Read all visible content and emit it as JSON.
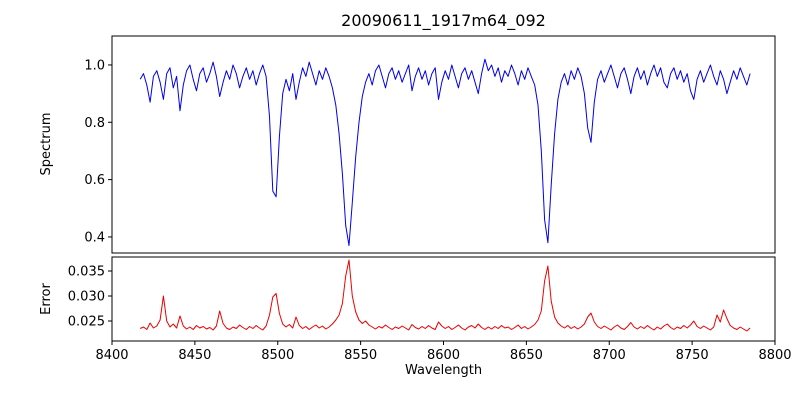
{
  "figure": {
    "title": "20090611_1917m64_092"
  },
  "chart_data": [
    {
      "type": "line",
      "panel": "spectrum",
      "title": "20090611_1917m64_092",
      "ylabel": "Spectrum",
      "line_color": "#0000ee",
      "xlim": [
        8400,
        8800
      ],
      "ylim": [
        0.344,
        1.101
      ],
      "yticks": [
        0.4,
        0.6,
        0.8,
        1.0
      ],
      "yticklabels": [
        "0.4",
        "0.6",
        "0.8",
        "1.0"
      ],
      "grid": false,
      "x_start": 8417,
      "x_step": 2,
      "y": [
        0.95,
        0.97,
        0.93,
        0.87,
        0.96,
        0.98,
        0.94,
        0.88,
        0.97,
        0.99,
        0.92,
        0.96,
        0.84,
        0.93,
        0.98,
        1.0,
        0.95,
        0.91,
        0.97,
        0.99,
        0.94,
        0.97,
        1.01,
        0.96,
        0.89,
        0.94,
        0.98,
        0.95,
        1.0,
        0.97,
        0.92,
        0.96,
        0.99,
        0.95,
        0.98,
        0.93,
        0.97,
        1.0,
        0.96,
        0.82,
        0.56,
        0.54,
        0.75,
        0.9,
        0.95,
        0.91,
        0.97,
        0.88,
        0.94,
        0.99,
        0.96,
        1.01,
        0.97,
        0.93,
        0.98,
        0.95,
        0.99,
        0.96,
        0.92,
        0.86,
        0.76,
        0.62,
        0.44,
        0.37,
        0.52,
        0.68,
        0.8,
        0.89,
        0.94,
        0.97,
        0.93,
        0.98,
        1.0,
        0.96,
        0.92,
        0.97,
        0.99,
        0.95,
        0.98,
        0.94,
        0.97,
        1.0,
        0.91,
        0.96,
        0.99,
        0.95,
        0.98,
        0.93,
        0.97,
        0.99,
        0.88,
        0.94,
        0.98,
        0.95,
        1.0,
        0.96,
        0.92,
        0.97,
        0.99,
        0.95,
        0.98,
        0.94,
        0.9,
        0.97,
        1.02,
        0.98,
        1.0,
        0.96,
        0.99,
        0.94,
        0.98,
        0.96,
        1.0,
        0.97,
        0.93,
        0.98,
        0.95,
        0.99,
        0.96,
        0.93,
        0.86,
        0.7,
        0.46,
        0.38,
        0.58,
        0.76,
        0.88,
        0.94,
        0.97,
        0.93,
        0.98,
        0.95,
        0.99,
        0.96,
        0.9,
        0.78,
        0.73,
        0.87,
        0.95,
        0.98,
        0.94,
        0.97,
        1.0,
        0.96,
        0.92,
        0.97,
        0.99,
        0.95,
        0.9,
        0.96,
        0.99,
        0.95,
        0.98,
        0.93,
        0.97,
        1.0,
        0.96,
        0.99,
        0.94,
        0.92,
        0.97,
        0.99,
        0.95,
        0.98,
        0.94,
        0.97,
        0.91,
        0.88,
        0.95,
        0.98,
        0.94,
        0.97,
        1.0,
        0.96,
        0.93,
        0.98,
        0.95,
        0.9,
        0.94,
        0.98,
        0.95,
        0.99,
        0.96,
        0.93,
        0.97
      ]
    },
    {
      "type": "line",
      "panel": "error",
      "ylabel": "Error",
      "xlabel": "Wavelength",
      "line_color": "#ee0000",
      "xlim": [
        8400,
        8800
      ],
      "ylim": [
        0.021,
        0.0378
      ],
      "yticks": [
        0.025,
        0.03,
        0.035
      ],
      "yticklabels": [
        "0.025",
        "0.030",
        "0.035"
      ],
      "xticks": [
        8400,
        8450,
        8500,
        8550,
        8600,
        8650,
        8700,
        8750,
        8800
      ],
      "xticklabels": [
        "8400",
        "8450",
        "8500",
        "8550",
        "8600",
        "8650",
        "8700",
        "8750",
        "8800"
      ],
      "grid": false,
      "x_start": 8417,
      "x_step": 2,
      "y": [
        0.0235,
        0.0238,
        0.0233,
        0.0246,
        0.0236,
        0.024,
        0.0252,
        0.03,
        0.025,
        0.0238,
        0.0244,
        0.0236,
        0.026,
        0.024,
        0.0234,
        0.0238,
        0.0233,
        0.0241,
        0.0236,
        0.0239,
        0.0234,
        0.0237,
        0.0232,
        0.024,
        0.027,
        0.0245,
        0.0236,
        0.0233,
        0.0238,
        0.0235,
        0.0242,
        0.0237,
        0.0233,
        0.0239,
        0.0235,
        0.0241,
        0.0236,
        0.0232,
        0.024,
        0.0262,
        0.0298,
        0.0305,
        0.0265,
        0.0244,
        0.0238,
        0.0243,
        0.0236,
        0.0258,
        0.0241,
        0.0235,
        0.0239,
        0.0233,
        0.0238,
        0.0242,
        0.0236,
        0.024,
        0.0234,
        0.0238,
        0.0244,
        0.0252,
        0.0262,
        0.0285,
        0.034,
        0.0372,
        0.03,
        0.0268,
        0.0252,
        0.0245,
        0.025,
        0.0242,
        0.0238,
        0.0234,
        0.0239,
        0.0236,
        0.0242,
        0.0237,
        0.0233,
        0.0238,
        0.0235,
        0.024,
        0.0236,
        0.0232,
        0.0243,
        0.0237,
        0.0234,
        0.0239,
        0.0235,
        0.0241,
        0.0236,
        0.0233,
        0.0248,
        0.024,
        0.0235,
        0.0239,
        0.0233,
        0.0237,
        0.0242,
        0.0236,
        0.0232,
        0.0238,
        0.0241,
        0.0236,
        0.0244,
        0.0237,
        0.0233,
        0.0238,
        0.0234,
        0.0239,
        0.0235,
        0.0241,
        0.0236,
        0.0238,
        0.0233,
        0.0237,
        0.0242,
        0.0235,
        0.0239,
        0.0234,
        0.0238,
        0.0243,
        0.0252,
        0.027,
        0.033,
        0.036,
        0.029,
        0.0258,
        0.0246,
        0.024,
        0.0236,
        0.0241,
        0.0235,
        0.0239,
        0.0234,
        0.0238,
        0.0244,
        0.0258,
        0.0266,
        0.0248,
        0.0239,
        0.0235,
        0.024,
        0.0236,
        0.0232,
        0.0238,
        0.0242,
        0.0236,
        0.0233,
        0.0239,
        0.0247,
        0.0238,
        0.0234,
        0.0239,
        0.0235,
        0.0241,
        0.0236,
        0.0232,
        0.0238,
        0.0234,
        0.024,
        0.0244,
        0.0237,
        0.0233,
        0.0238,
        0.0235,
        0.0241,
        0.0236,
        0.0242,
        0.025,
        0.0239,
        0.0235,
        0.024,
        0.0236,
        0.0232,
        0.0238,
        0.0262,
        0.0248,
        0.0272,
        0.0255,
        0.0241,
        0.0236,
        0.0233,
        0.0238,
        0.0234,
        0.023,
        0.0236
      ]
    }
  ]
}
